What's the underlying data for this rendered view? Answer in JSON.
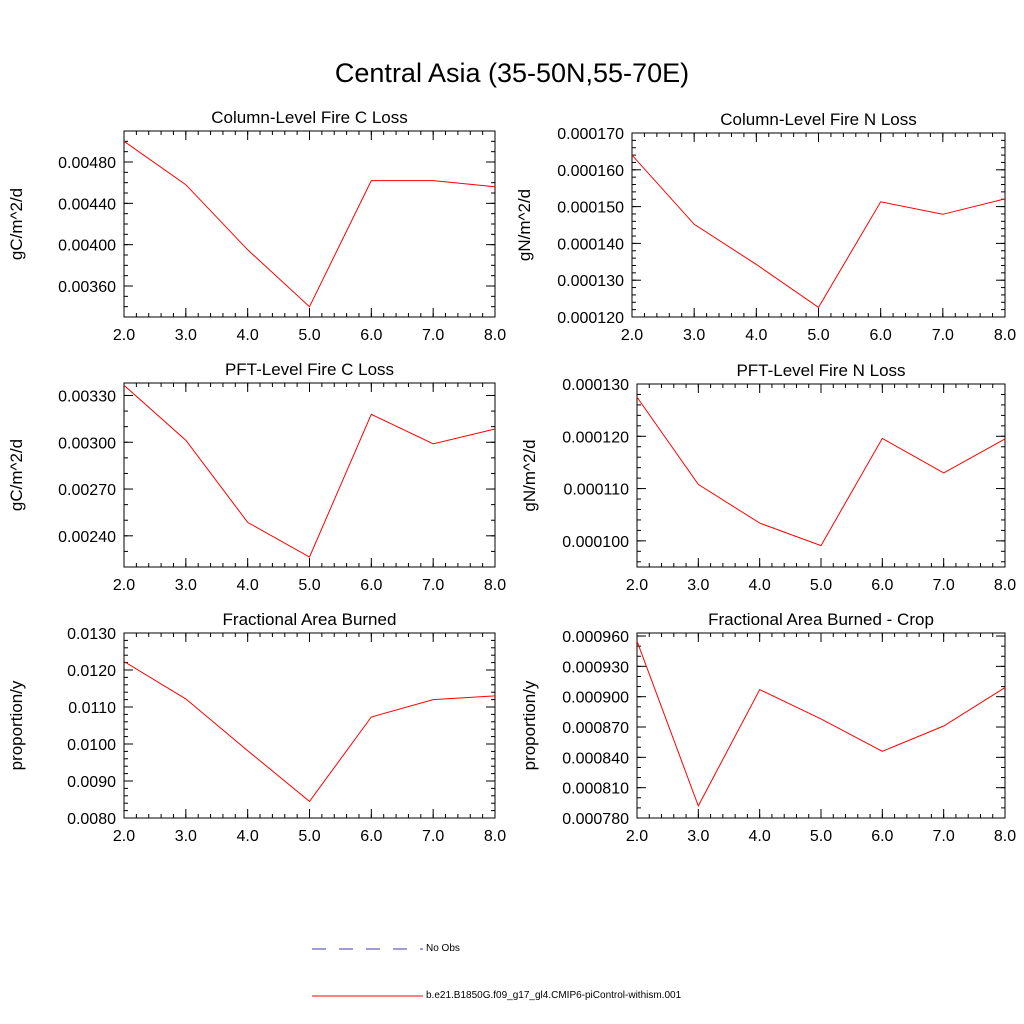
{
  "figure_title": "Central Asia (35-50N,55-70E)",
  "legend": {
    "obs_label": "No Obs",
    "model_label": "b.e21.B1850G.f09_g17_gl4.CMIP6-piControl-withism.001",
    "obs_color": "#3b3bb0",
    "model_color": "#ff0000"
  },
  "chart_data": [
    {
      "type": "line",
      "title": "Column-Level Fire C Loss",
      "ylabel": "gC/m^2/d",
      "x": [
        2.0,
        3.0,
        4.0,
        5.0,
        6.0,
        7.0,
        8.0
      ],
      "series": [
        {
          "values": [
            0.005,
            0.00458,
            0.00395,
            0.0034,
            0.00462,
            0.00462,
            0.00456
          ],
          "color": "#ff0000"
        }
      ],
      "xlim": [
        2.0,
        8.0
      ],
      "ylim": [
        0.0033,
        0.0051
      ],
      "xticks": [
        "2.0",
        "3.0",
        "4.0",
        "5.0",
        "6.0",
        "7.0",
        "8.0"
      ],
      "yticks": [
        0.0036,
        0.004,
        0.0044,
        0.0048
      ],
      "ytick_labels": [
        "0.00360",
        "0.00400",
        "0.00440",
        "0.00480"
      ],
      "yminor": 0.0001
    },
    {
      "type": "line",
      "title": "Column-Level Fire N Loss",
      "ylabel": "gN/m^2/d",
      "x": [
        2.0,
        3.0,
        4.0,
        5.0,
        6.0,
        7.0,
        8.0
      ],
      "series": [
        {
          "values": [
            0.000164,
            0.0001452,
            0.0001343,
            0.0001226,
            0.0001513,
            0.0001479,
            0.0001521
          ],
          "color": "#ff0000"
        }
      ],
      "xlim": [
        2.0,
        8.0
      ],
      "ylim": [
        0.00012,
        0.00017
      ],
      "xticks": [
        "2.0",
        "3.0",
        "4.0",
        "5.0",
        "6.0",
        "7.0",
        "8.0"
      ],
      "yticks": [
        0.00012,
        0.00013,
        0.00014,
        0.00015,
        0.00016,
        0.00017
      ],
      "ytick_labels": [
        "0.000120",
        "0.000130",
        "0.000140",
        "0.000150",
        "0.000160",
        "0.000170"
      ],
      "yminor": 2e-06
    },
    {
      "type": "line",
      "title": "PFT-Level Fire C Loss",
      "ylabel": "gC/m^2/d",
      "x": [
        2.0,
        3.0,
        4.0,
        5.0,
        6.0,
        7.0,
        8.0
      ],
      "series": [
        {
          "values": [
            0.003365,
            0.003013,
            0.002486,
            0.002264,
            0.003179,
            0.00299,
            0.003085
          ],
          "color": "#ff0000"
        }
      ],
      "xlim": [
        2.0,
        8.0
      ],
      "ylim": [
        0.0022,
        0.00338
      ],
      "xticks": [
        "2.0",
        "3.0",
        "4.0",
        "5.0",
        "6.0",
        "7.0",
        "8.0"
      ],
      "yticks": [
        0.0024,
        0.0027,
        0.003,
        0.0033
      ],
      "ytick_labels": [
        "0.00240",
        "0.00270",
        "0.00300",
        "0.00330"
      ],
      "yminor": 0.0001
    },
    {
      "type": "line",
      "title": "PFT-Level Fire N Loss",
      "ylabel": "gN/m^2/d",
      "x": [
        2.0,
        3.0,
        4.0,
        5.0,
        6.0,
        7.0,
        8.0
      ],
      "series": [
        {
          "values": [
            0.0001275,
            0.0001108,
            0.0001034,
            9.91e-05,
            0.0001196,
            0.000113,
            0.0001195
          ],
          "color": "#ff0000"
        }
      ],
      "xlim": [
        2.0,
        8.0
      ],
      "ylim": [
        9.5e-05,
        0.00013
      ],
      "xticks": [
        "2.0",
        "3.0",
        "4.0",
        "5.0",
        "6.0",
        "7.0",
        "8.0"
      ],
      "yticks": [
        0.0001,
        0.00011,
        0.00012,
        0.00013
      ],
      "ytick_labels": [
        "0.000100",
        "0.000110",
        "0.000120",
        "0.000130"
      ],
      "yminor": 2e-06
    },
    {
      "type": "line",
      "title": "Fractional Area Burned",
      "ylabel": "proportion/y",
      "x": [
        2.0,
        3.0,
        4.0,
        5.0,
        6.0,
        7.0,
        8.0
      ],
      "series": [
        {
          "values": [
            0.01223,
            0.01122,
            0.00982,
            0.00845,
            0.01073,
            0.0112,
            0.0113
          ],
          "color": "#ff0000"
        }
      ],
      "xlim": [
        2.0,
        8.0
      ],
      "ylim": [
        0.008,
        0.013
      ],
      "xticks": [
        "2.0",
        "3.0",
        "4.0",
        "5.0",
        "6.0",
        "7.0",
        "8.0"
      ],
      "yticks": [
        0.008,
        0.009,
        0.01,
        0.011,
        0.012,
        0.013
      ],
      "ytick_labels": [
        "0.0080",
        "0.0090",
        "0.0100",
        "0.0110",
        "0.0120",
        "0.0130"
      ],
      "yminor": 0.0002
    },
    {
      "type": "line",
      "title": "Fractional Area Burned - Crop",
      "ylabel": "proportion/y",
      "x": [
        2.0,
        3.0,
        4.0,
        5.0,
        6.0,
        7.0,
        8.0
      ],
      "series": [
        {
          "values": [
            0.000955,
            0.000792,
            0.000907,
            0.000878,
            0.000846,
            0.000871,
            0.000909
          ],
          "color": "#ff0000"
        }
      ],
      "xlim": [
        2.0,
        8.0
      ],
      "ylim": [
        0.00078,
        0.000963
      ],
      "xticks": [
        "2.0",
        "3.0",
        "4.0",
        "5.0",
        "6.0",
        "7.0",
        "8.0"
      ],
      "yticks": [
        0.00078,
        0.00081,
        0.00084,
        0.00087,
        0.0009,
        0.00093,
        0.00096
      ],
      "ytick_labels": [
        "0.000780",
        "0.000810",
        "0.000840",
        "0.000870",
        "0.000900",
        "0.000930",
        "0.000960"
      ],
      "yminor": 1e-05
    }
  ]
}
